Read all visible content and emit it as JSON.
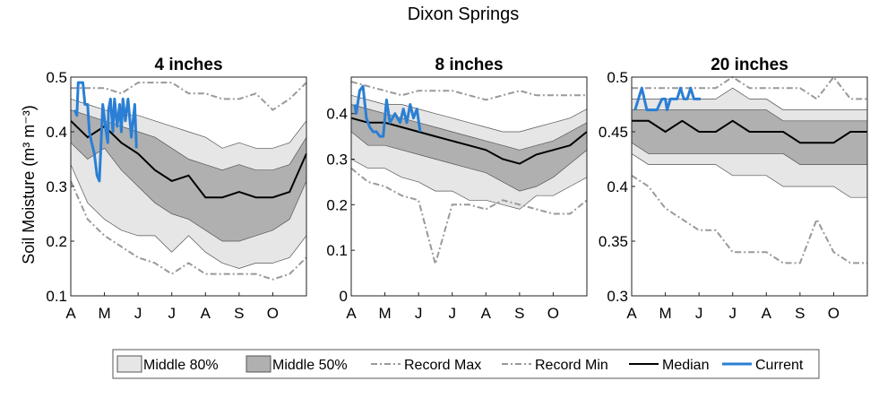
{
  "figure": {
    "title": "Dixon Springs",
    "ylabel": "Soil Moisture (m³ m⁻³)"
  },
  "colors": {
    "band80": "#e6e6e6",
    "band50": "#b0b0b0",
    "record": "#999999",
    "median": "#000000",
    "current": "#2a7fd4"
  },
  "legend": {
    "items": [
      {
        "label": "Middle 80%",
        "kind": "band80"
      },
      {
        "label": "Middle 50%",
        "kind": "band50"
      },
      {
        "label": "Record Max",
        "kind": "record"
      },
      {
        "label": "Record Min",
        "kind": "record"
      },
      {
        "label": "Median",
        "kind": "median"
      },
      {
        "label": "Current",
        "kind": "current"
      }
    ]
  },
  "chart_data": [
    {
      "type": "area",
      "title": "4 inches",
      "months": [
        "A",
        "M",
        "J",
        "J",
        "A",
        "S",
        "O"
      ],
      "xlim": [
        0,
        7
      ],
      "ylim": [
        0.1,
        0.5
      ],
      "yticks": [
        0.1,
        0.2,
        0.3,
        0.4,
        0.5
      ],
      "yticklabels": [
        "0.1",
        "0.2",
        "0.3",
        "0.4",
        "0.5"
      ],
      "x": [
        0,
        0.5,
        1,
        1.5,
        2,
        2.5,
        3,
        3.5,
        4,
        4.5,
        5,
        5.5,
        6,
        6.5,
        7
      ],
      "record_max": [
        0.48,
        0.48,
        0.48,
        0.47,
        0.49,
        0.49,
        0.49,
        0.47,
        0.47,
        0.46,
        0.46,
        0.47,
        0.44,
        0.46,
        0.49
      ],
      "p90": [
        0.46,
        0.45,
        0.44,
        0.43,
        0.43,
        0.42,
        0.41,
        0.4,
        0.39,
        0.37,
        0.38,
        0.37,
        0.37,
        0.38,
        0.42
      ],
      "p75": [
        0.44,
        0.43,
        0.42,
        0.41,
        0.4,
        0.39,
        0.37,
        0.35,
        0.34,
        0.33,
        0.34,
        0.33,
        0.33,
        0.34,
        0.39
      ],
      "median": [
        0.42,
        0.39,
        0.41,
        0.38,
        0.36,
        0.33,
        0.31,
        0.32,
        0.28,
        0.28,
        0.29,
        0.28,
        0.28,
        0.29,
        0.36
      ],
      "p25": [
        0.38,
        0.35,
        0.37,
        0.33,
        0.3,
        0.27,
        0.25,
        0.24,
        0.22,
        0.2,
        0.2,
        0.21,
        0.22,
        0.24,
        0.31
      ],
      "p10": [
        0.34,
        0.27,
        0.24,
        0.22,
        0.21,
        0.21,
        0.18,
        0.21,
        0.18,
        0.16,
        0.15,
        0.16,
        0.16,
        0.17,
        0.21
      ],
      "record_min": [
        0.31,
        0.24,
        0.21,
        0.19,
        0.17,
        0.16,
        0.14,
        0.16,
        0.14,
        0.14,
        0.14,
        0.14,
        0.13,
        0.14,
        0.17
      ],
      "current_x": [
        0.12,
        0.18,
        0.22,
        0.3,
        0.36,
        0.42,
        0.5,
        0.55,
        0.62,
        0.7,
        0.78,
        0.85,
        0.95,
        1.05,
        1.1,
        1.12,
        1.18,
        1.25,
        1.3,
        1.38,
        1.45,
        1.5,
        1.55,
        1.62,
        1.7,
        1.8,
        1.9,
        1.95
      ],
      "current_y": [
        0.44,
        0.43,
        0.49,
        0.49,
        0.49,
        0.45,
        0.45,
        0.4,
        0.38,
        0.36,
        0.32,
        0.31,
        0.45,
        0.4,
        0.38,
        0.44,
        0.46,
        0.4,
        0.46,
        0.41,
        0.45,
        0.4,
        0.46,
        0.42,
        0.46,
        0.39,
        0.45,
        0.37
      ]
    },
    {
      "type": "area",
      "title": "8 inches",
      "months": [
        "A",
        "M",
        "J",
        "J",
        "A",
        "S",
        "O"
      ],
      "xlim": [
        0,
        7
      ],
      "ylim": [
        0,
        0.48
      ],
      "yticks": [
        0,
        0.1,
        0.2,
        0.3,
        0.4
      ],
      "yticklabels": [
        "0",
        "0.1",
        "0.2",
        "0.3",
        "0.4"
      ],
      "x": [
        0,
        0.5,
        1,
        1.5,
        2,
        2.5,
        3,
        3.5,
        4,
        4.5,
        5,
        5.5,
        6,
        6.5,
        7
      ],
      "record_max": [
        0.47,
        0.46,
        0.45,
        0.44,
        0.45,
        0.45,
        0.45,
        0.44,
        0.43,
        0.44,
        0.45,
        0.44,
        0.44,
        0.44,
        0.44
      ],
      "p90": [
        0.44,
        0.43,
        0.42,
        0.42,
        0.41,
        0.4,
        0.39,
        0.38,
        0.37,
        0.36,
        0.36,
        0.37,
        0.38,
        0.39,
        0.41
      ],
      "p75": [
        0.42,
        0.41,
        0.4,
        0.39,
        0.38,
        0.37,
        0.36,
        0.35,
        0.34,
        0.33,
        0.32,
        0.33,
        0.34,
        0.36,
        0.38
      ],
      "median": [
        0.39,
        0.38,
        0.38,
        0.37,
        0.36,
        0.35,
        0.34,
        0.33,
        0.32,
        0.3,
        0.29,
        0.31,
        0.32,
        0.33,
        0.36
      ],
      "p25": [
        0.36,
        0.33,
        0.33,
        0.32,
        0.31,
        0.3,
        0.29,
        0.28,
        0.27,
        0.25,
        0.23,
        0.24,
        0.26,
        0.29,
        0.32
      ],
      "p10": [
        0.3,
        0.28,
        0.28,
        0.26,
        0.25,
        0.23,
        0.23,
        0.21,
        0.21,
        0.2,
        0.19,
        0.22,
        0.22,
        0.24,
        0.26
      ],
      "record_min": [
        0.28,
        0.25,
        0.24,
        0.22,
        0.21,
        0.07,
        0.2,
        0.2,
        0.19,
        0.21,
        0.2,
        0.19,
        0.18,
        0.18,
        0.21
      ],
      "current_x": [
        0.1,
        0.15,
        0.25,
        0.35,
        0.45,
        0.55,
        0.65,
        0.75,
        0.85,
        0.95,
        1.05,
        1.15,
        1.3,
        1.45,
        1.55,
        1.65,
        1.75,
        1.85,
        1.95,
        2.05
      ],
      "current_y": [
        0.42,
        0.4,
        0.45,
        0.46,
        0.39,
        0.37,
        0.36,
        0.36,
        0.35,
        0.35,
        0.43,
        0.38,
        0.4,
        0.38,
        0.41,
        0.38,
        0.42,
        0.39,
        0.41,
        0.36
      ]
    },
    {
      "type": "area",
      "title": "20 inches",
      "months": [
        "A",
        "M",
        "J",
        "J",
        "A",
        "S",
        "O"
      ],
      "xlim": [
        0,
        7
      ],
      "ylim": [
        0.3,
        0.5
      ],
      "yticks": [
        0.3,
        0.35,
        0.4,
        0.45,
        0.5
      ],
      "yticklabels": [
        "0.3",
        "0.35",
        "0.4",
        "0.45",
        "0.5"
      ],
      "x": [
        0,
        0.5,
        1,
        1.5,
        2,
        2.5,
        3,
        3.5,
        4,
        4.5,
        5,
        5.5,
        6,
        6.5,
        7
      ],
      "record_max": [
        0.49,
        0.49,
        0.49,
        0.49,
        0.49,
        0.49,
        0.5,
        0.49,
        0.49,
        0.49,
        0.49,
        0.48,
        0.5,
        0.48,
        0.48
      ],
      "p90": [
        0.48,
        0.48,
        0.48,
        0.48,
        0.48,
        0.48,
        0.49,
        0.48,
        0.48,
        0.47,
        0.47,
        0.47,
        0.47,
        0.47,
        0.47
      ],
      "p75": [
        0.47,
        0.47,
        0.47,
        0.47,
        0.47,
        0.47,
        0.47,
        0.47,
        0.47,
        0.46,
        0.46,
        0.46,
        0.46,
        0.46,
        0.46
      ],
      "median": [
        0.46,
        0.46,
        0.45,
        0.46,
        0.45,
        0.45,
        0.46,
        0.45,
        0.45,
        0.45,
        0.44,
        0.44,
        0.44,
        0.45,
        0.45
      ],
      "p25": [
        0.44,
        0.43,
        0.43,
        0.43,
        0.43,
        0.43,
        0.43,
        0.43,
        0.43,
        0.43,
        0.42,
        0.42,
        0.42,
        0.42,
        0.42
      ],
      "p10": [
        0.43,
        0.42,
        0.42,
        0.42,
        0.42,
        0.42,
        0.41,
        0.41,
        0.41,
        0.4,
        0.4,
        0.4,
        0.4,
        0.39,
        0.39
      ],
      "record_min": [
        0.41,
        0.4,
        0.38,
        0.37,
        0.36,
        0.36,
        0.34,
        0.34,
        0.34,
        0.33,
        0.33,
        0.37,
        0.34,
        0.33,
        0.33
      ],
      "current_x": [
        0.1,
        0.2,
        0.3,
        0.45,
        0.6,
        0.75,
        0.9,
        1.0,
        1.05,
        1.15,
        1.25,
        1.35,
        1.45,
        1.55,
        1.65,
        1.75,
        1.85,
        1.95,
        2.05
      ],
      "current_y": [
        0.47,
        0.48,
        0.49,
        0.47,
        0.47,
        0.47,
        0.48,
        0.48,
        0.47,
        0.48,
        0.48,
        0.48,
        0.49,
        0.48,
        0.48,
        0.49,
        0.48,
        0.48,
        0.48
      ]
    }
  ]
}
